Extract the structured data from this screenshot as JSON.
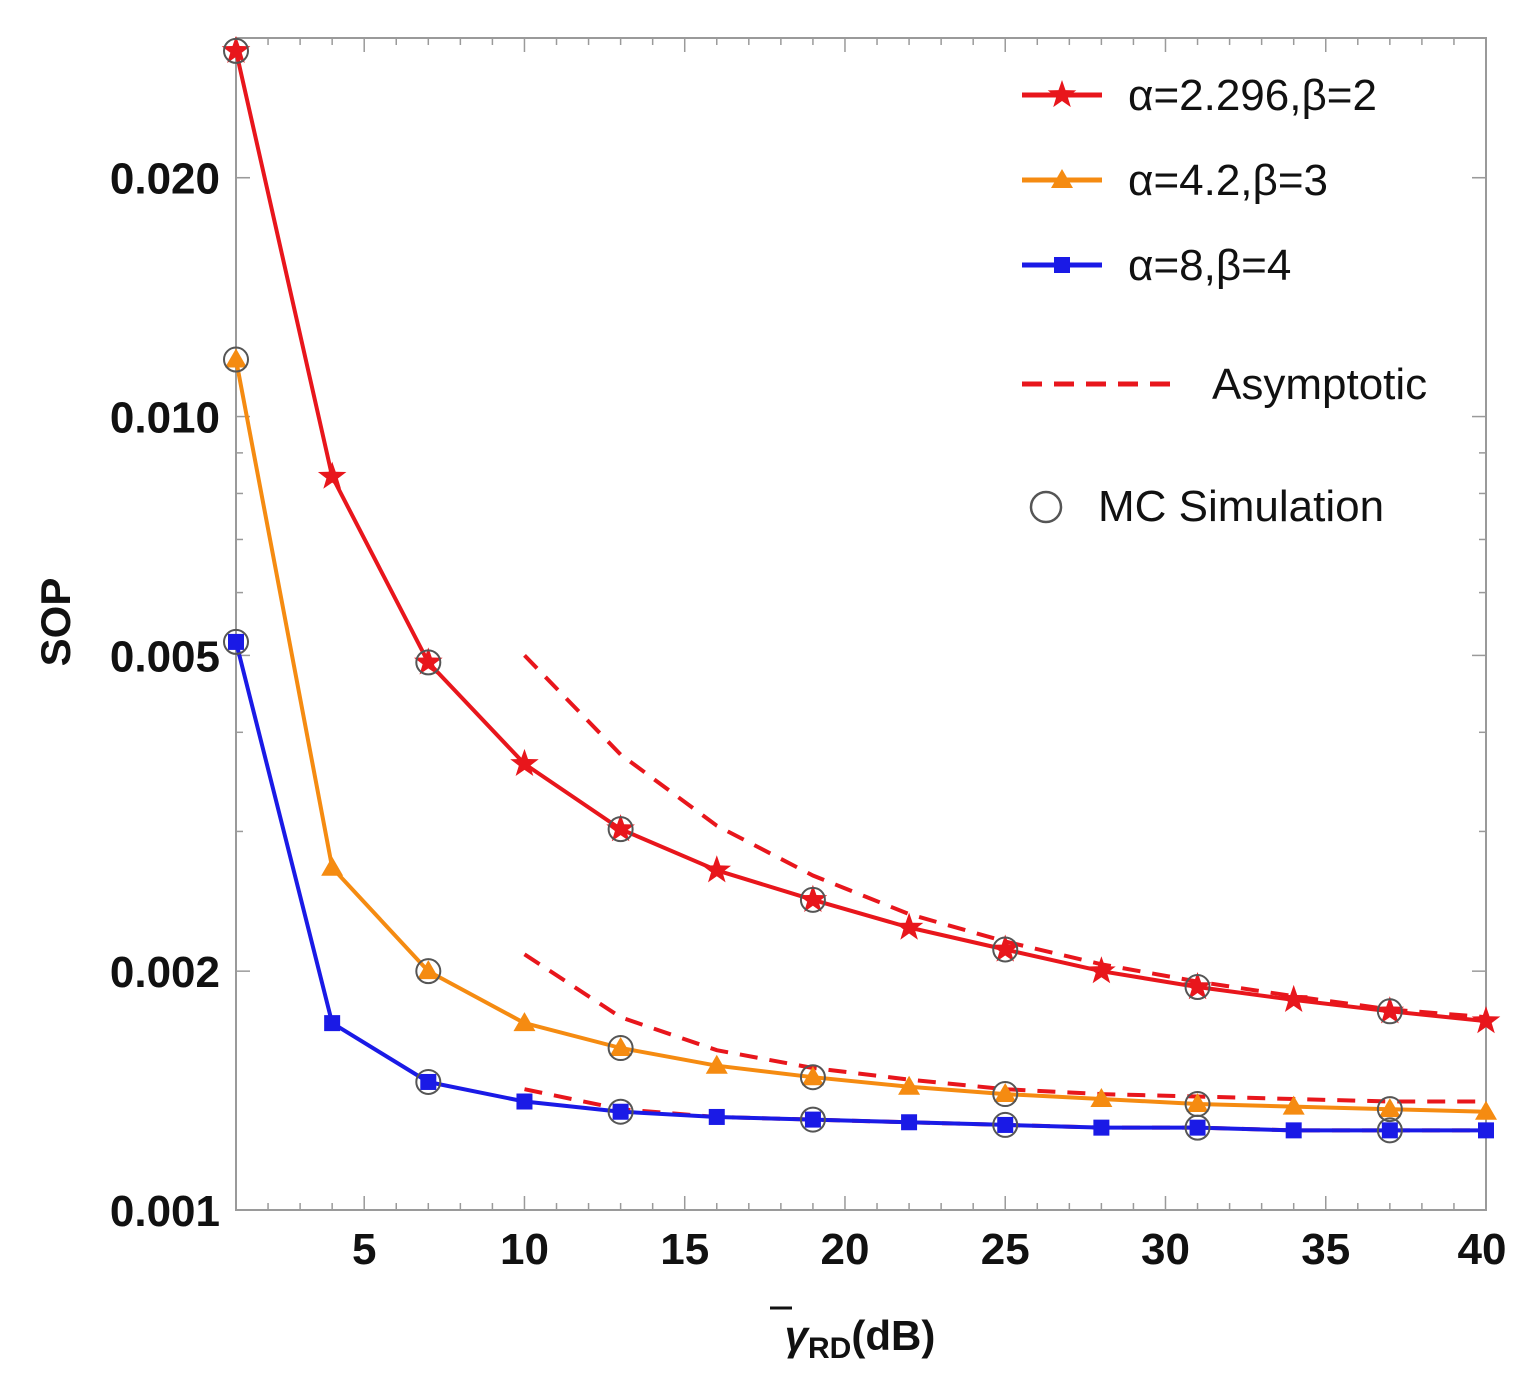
{
  "chart_data": {
    "type": "line",
    "xlabel_symbol": "γ",
    "xlabel_subscript": "RD",
    "xlabel_unit": "(dB)",
    "ylabel": "SOP",
    "y_scale": "log",
    "xlim": [
      1,
      40
    ],
    "ylim": [
      0.001,
      0.03
    ],
    "x_ticks": [
      5,
      10,
      15,
      20,
      25,
      30,
      35,
      40
    ],
    "x_tick_labels": [
      "5",
      "10",
      "15",
      "20",
      "25",
      "30",
      "35",
      "40"
    ],
    "y_ticks": [
      0.001,
      0.002,
      0.005,
      0.01,
      0.02
    ],
    "y_tick_labels": [
      "0.001",
      "0.002",
      "0.005",
      "0.010",
      "0.020"
    ],
    "legend_position": "top-right",
    "grid": false,
    "series": [
      {
        "name": "α=2.296,β=2",
        "color": "#e8161c",
        "marker": "star",
        "x": [
          1,
          4,
          7,
          10,
          13,
          16,
          19,
          22,
          25,
          28,
          31,
          34,
          37,
          40
        ],
        "y": [
          0.0289,
          0.0084,
          0.0049,
          0.00365,
          0.00302,
          0.00268,
          0.00246,
          0.00227,
          0.00213,
          0.002,
          0.00191,
          0.00184,
          0.00178,
          0.00173
        ]
      },
      {
        "name": "α=4.2,β=3",
        "color": "#f58b11",
        "marker": "triangle",
        "x": [
          1,
          4,
          7,
          10,
          13,
          16,
          19,
          22,
          25,
          28,
          31,
          34,
          37,
          40
        ],
        "y": [
          0.0118,
          0.0027,
          0.002,
          0.00172,
          0.0016,
          0.00152,
          0.00147,
          0.00143,
          0.0014,
          0.00138,
          0.00136,
          0.00135,
          0.00134,
          0.00133
        ]
      },
      {
        "name": "α=8,β=4",
        "color": "#1a1ae6",
        "marker": "square",
        "x": [
          1,
          4,
          7,
          10,
          13,
          16,
          19,
          22,
          25,
          28,
          31,
          34,
          37,
          40
        ],
        "y": [
          0.0052,
          0.00172,
          0.00145,
          0.00137,
          0.00133,
          0.00131,
          0.0013,
          0.00129,
          0.00128,
          0.00127,
          0.00127,
          0.00126,
          0.00126,
          0.00126
        ]
      }
    ],
    "asymptotic": {
      "name": "Asymptotic",
      "color": "#e8161c",
      "style": "dashed",
      "curves": [
        {
          "x": [
            10,
            13,
            16,
            19,
            22,
            25,
            28,
            31,
            34,
            37,
            40
          ],
          "y": [
            0.005,
            0.00375,
            0.00305,
            0.00264,
            0.00236,
            0.00218,
            0.00204,
            0.00194,
            0.00186,
            0.00179,
            0.00175
          ]
        },
        {
          "x": [
            10,
            13,
            16,
            19,
            22,
            25,
            28,
            31,
            34,
            37,
            40
          ],
          "y": [
            0.0021,
            0.00175,
            0.00159,
            0.00151,
            0.00146,
            0.00142,
            0.0014,
            0.00139,
            0.00138,
            0.00137,
            0.00137
          ]
        },
        {
          "x": [
            10,
            13,
            16,
            19,
            22,
            25,
            28,
            31,
            34,
            37,
            40
          ],
          "y": [
            0.00142,
            0.00134,
            0.00131,
            0.0013,
            0.00129,
            0.00128,
            0.00127,
            0.00127,
            0.00126,
            0.00126,
            0.00126
          ]
        }
      ]
    },
    "simulation": {
      "name": "MC Simulation",
      "marker": "circle",
      "points": [
        {
          "series": 0,
          "x": [
            1,
            7,
            13,
            19,
            25,
            31,
            37
          ]
        },
        {
          "series": 1,
          "x": [
            1,
            7,
            13,
            19,
            25,
            31,
            37
          ]
        },
        {
          "series": 2,
          "x": [
            1,
            7,
            13,
            19,
            25,
            31,
            37
          ]
        }
      ]
    }
  }
}
